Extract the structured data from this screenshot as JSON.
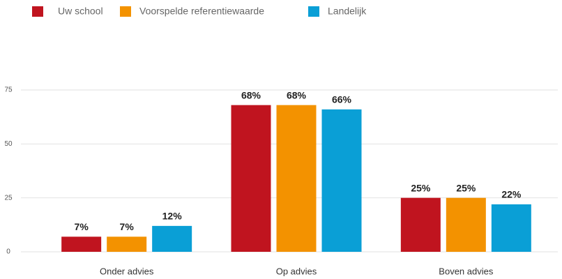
{
  "chart_data": {
    "type": "bar",
    "categories": [
      "Onder advies",
      "Op advies",
      "Boven advies"
    ],
    "series": [
      {
        "name": "Uw school",
        "color": "#c0141f",
        "values": [
          7,
          68,
          25
        ],
        "value_labels": [
          "7%",
          "68%",
          "25%"
        ]
      },
      {
        "name": "Voorspelde referentiewaarde",
        "color": "#f39200",
        "values": [
          7,
          68,
          25
        ],
        "value_labels": [
          "7%",
          "68%",
          "25%"
        ]
      },
      {
        "name": "Landelijk",
        "color": "#0a9fd6",
        "values": [
          12,
          66,
          22
        ],
        "value_labels": [
          "12%",
          "66%",
          "22%"
        ]
      }
    ],
    "ylim": [
      0,
      75
    ],
    "yticks": [
      0,
      25,
      50,
      75
    ],
    "grid": true,
    "legend": "top-left"
  }
}
